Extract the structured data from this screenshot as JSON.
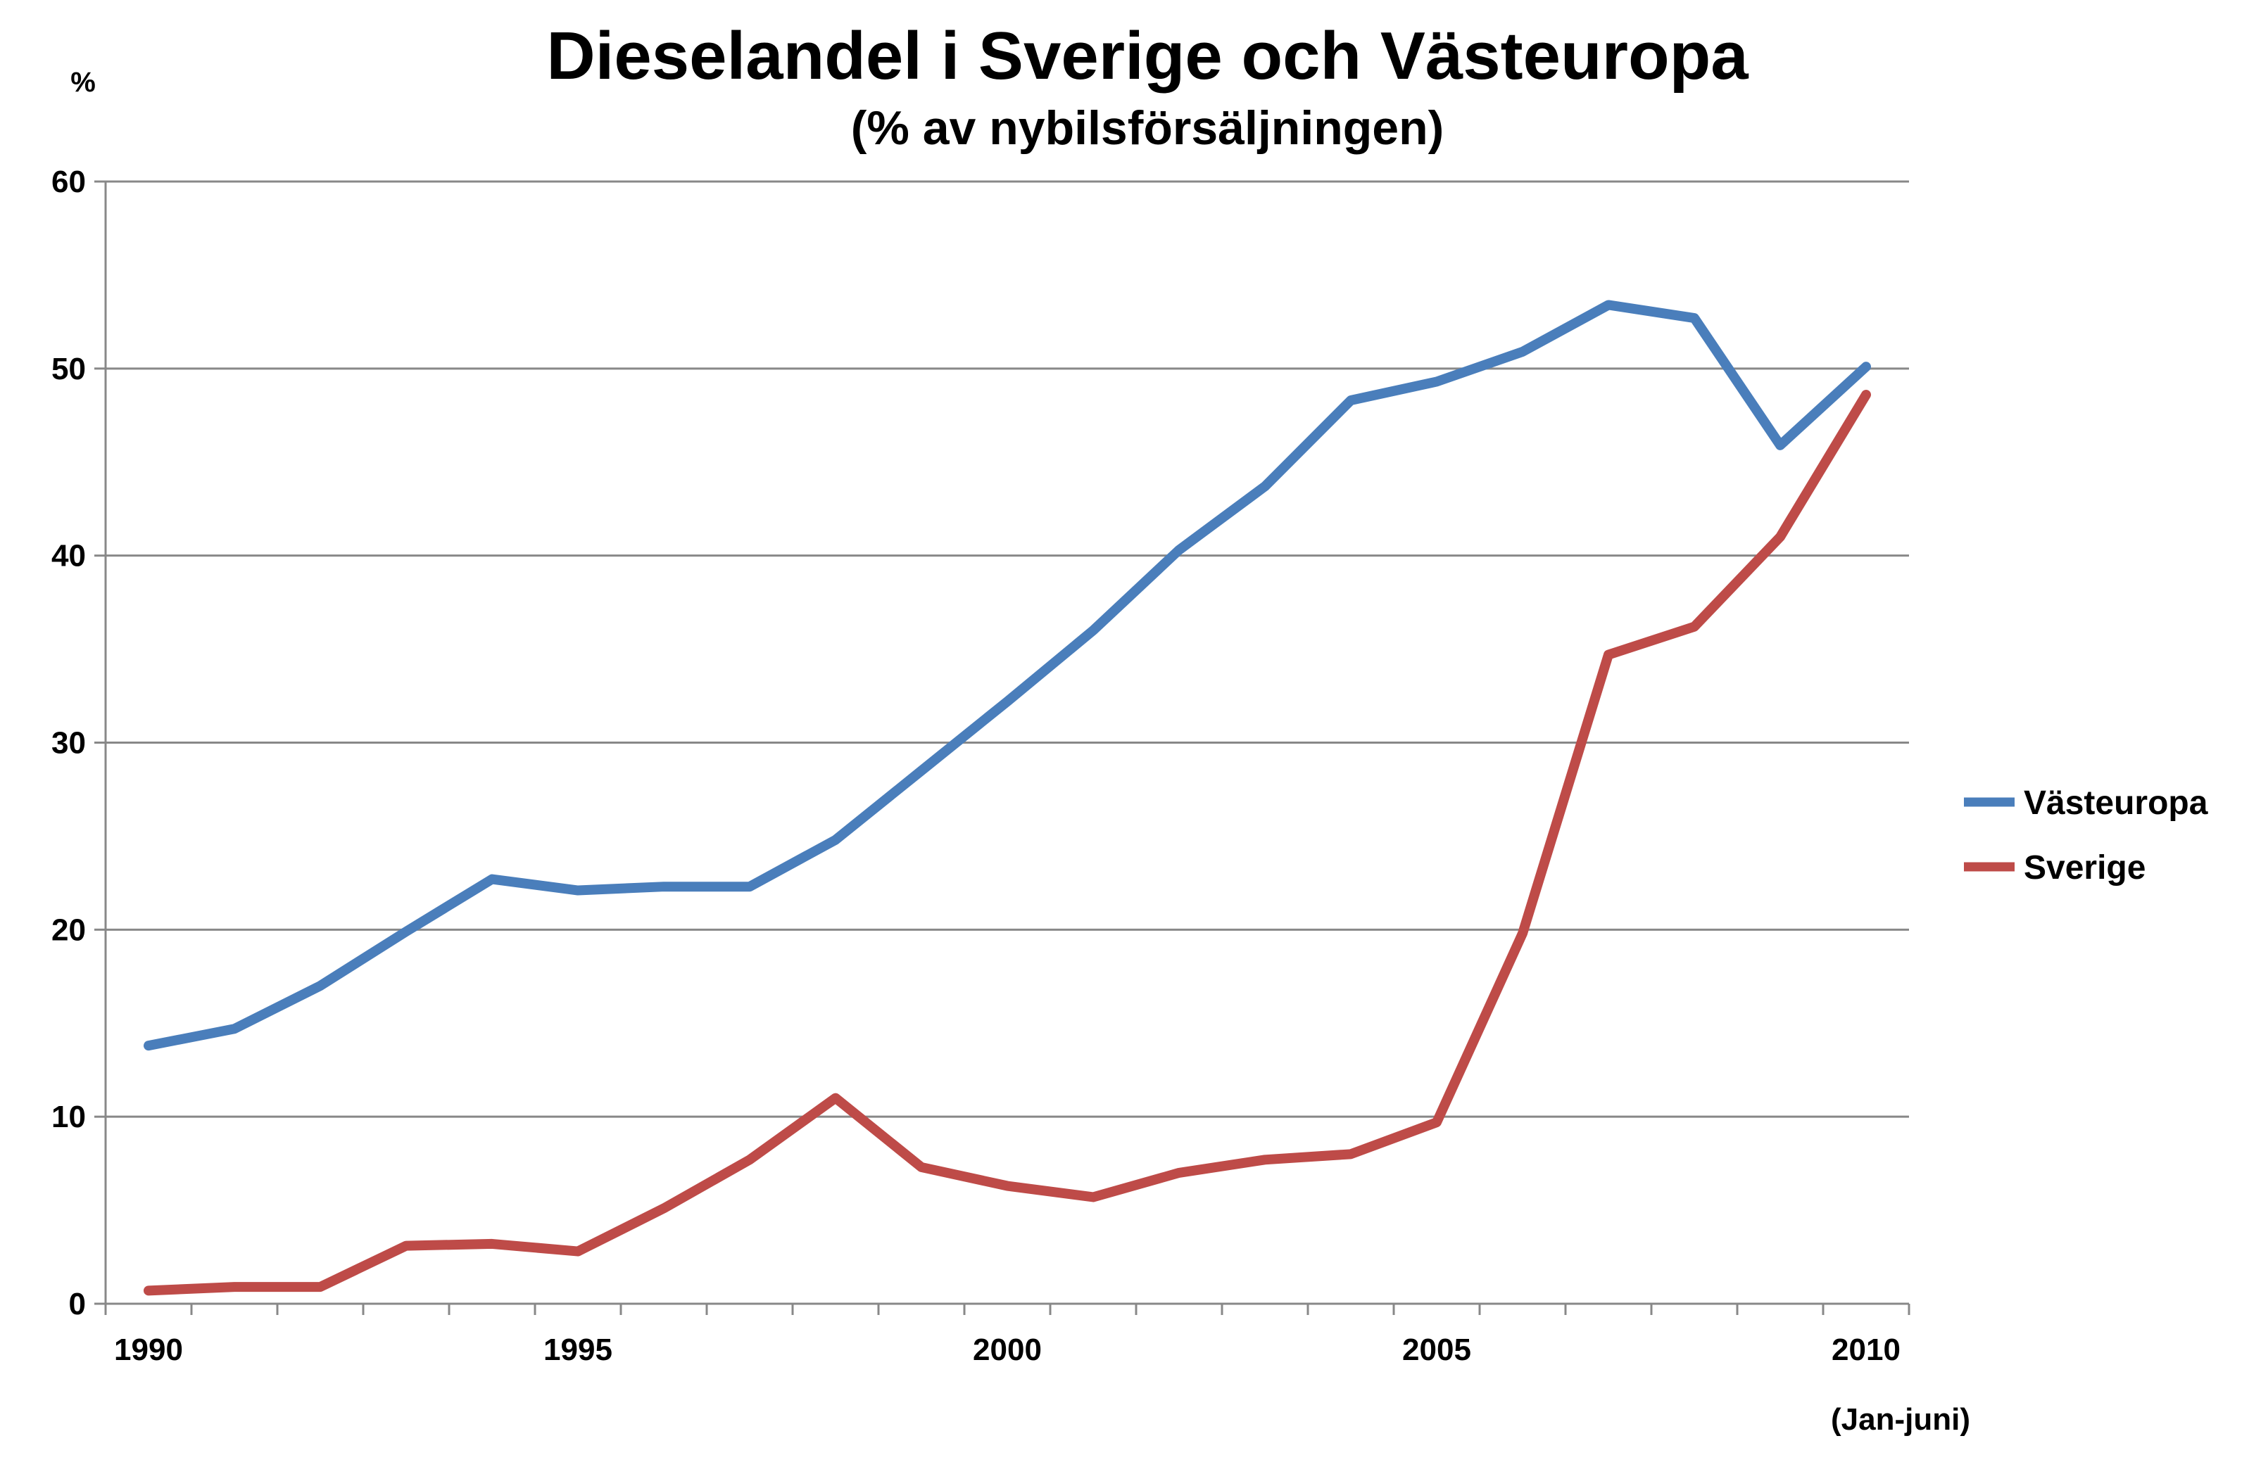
{
  "chart_data": {
    "type": "line",
    "title": "Dieselandel i Sverige och Västeuropa",
    "subtitle": "(% av nybilsförsäljningen)",
    "ylabel": "%",
    "xlabel": "",
    "ylim": [
      0,
      60
    ],
    "xlim": [
      1989.5,
      2010.5
    ],
    "yticks": [
      0,
      10,
      20,
      30,
      40,
      50,
      60
    ],
    "xticks": [
      1990,
      1995,
      2000,
      2005,
      2010
    ],
    "xtick_labels": [
      "1990",
      "1995",
      "2000",
      "2005",
      "2010"
    ],
    "x_note": "(Jan-juni)",
    "grid": true,
    "legend_position": "right",
    "x": [
      1990,
      1991,
      1992,
      1993,
      1994,
      1995,
      1996,
      1997,
      1998,
      1999,
      2000,
      2001,
      2002,
      2003,
      2004,
      2005,
      2006,
      2007,
      2008,
      2009,
      2010
    ],
    "series": [
      {
        "name": "Västeuropa",
        "color": "#4a7ebb",
        "values": [
          13.8,
          14.7,
          17.0,
          19.9,
          22.7,
          22.1,
          22.3,
          22.3,
          24.8,
          28.5,
          32.2,
          36.0,
          40.3,
          43.7,
          48.3,
          49.3,
          50.9,
          53.4,
          52.7,
          45.9,
          50.1
        ]
      },
      {
        "name": "Sverige",
        "color": "#be4b48",
        "values": [
          0.7,
          0.9,
          0.9,
          3.1,
          3.2,
          2.8,
          5.1,
          7.7,
          11.0,
          7.3,
          6.3,
          5.7,
          7.0,
          7.7,
          8.0,
          9.7,
          19.8,
          34.7,
          36.2,
          41.0,
          48.6
        ]
      }
    ]
  }
}
